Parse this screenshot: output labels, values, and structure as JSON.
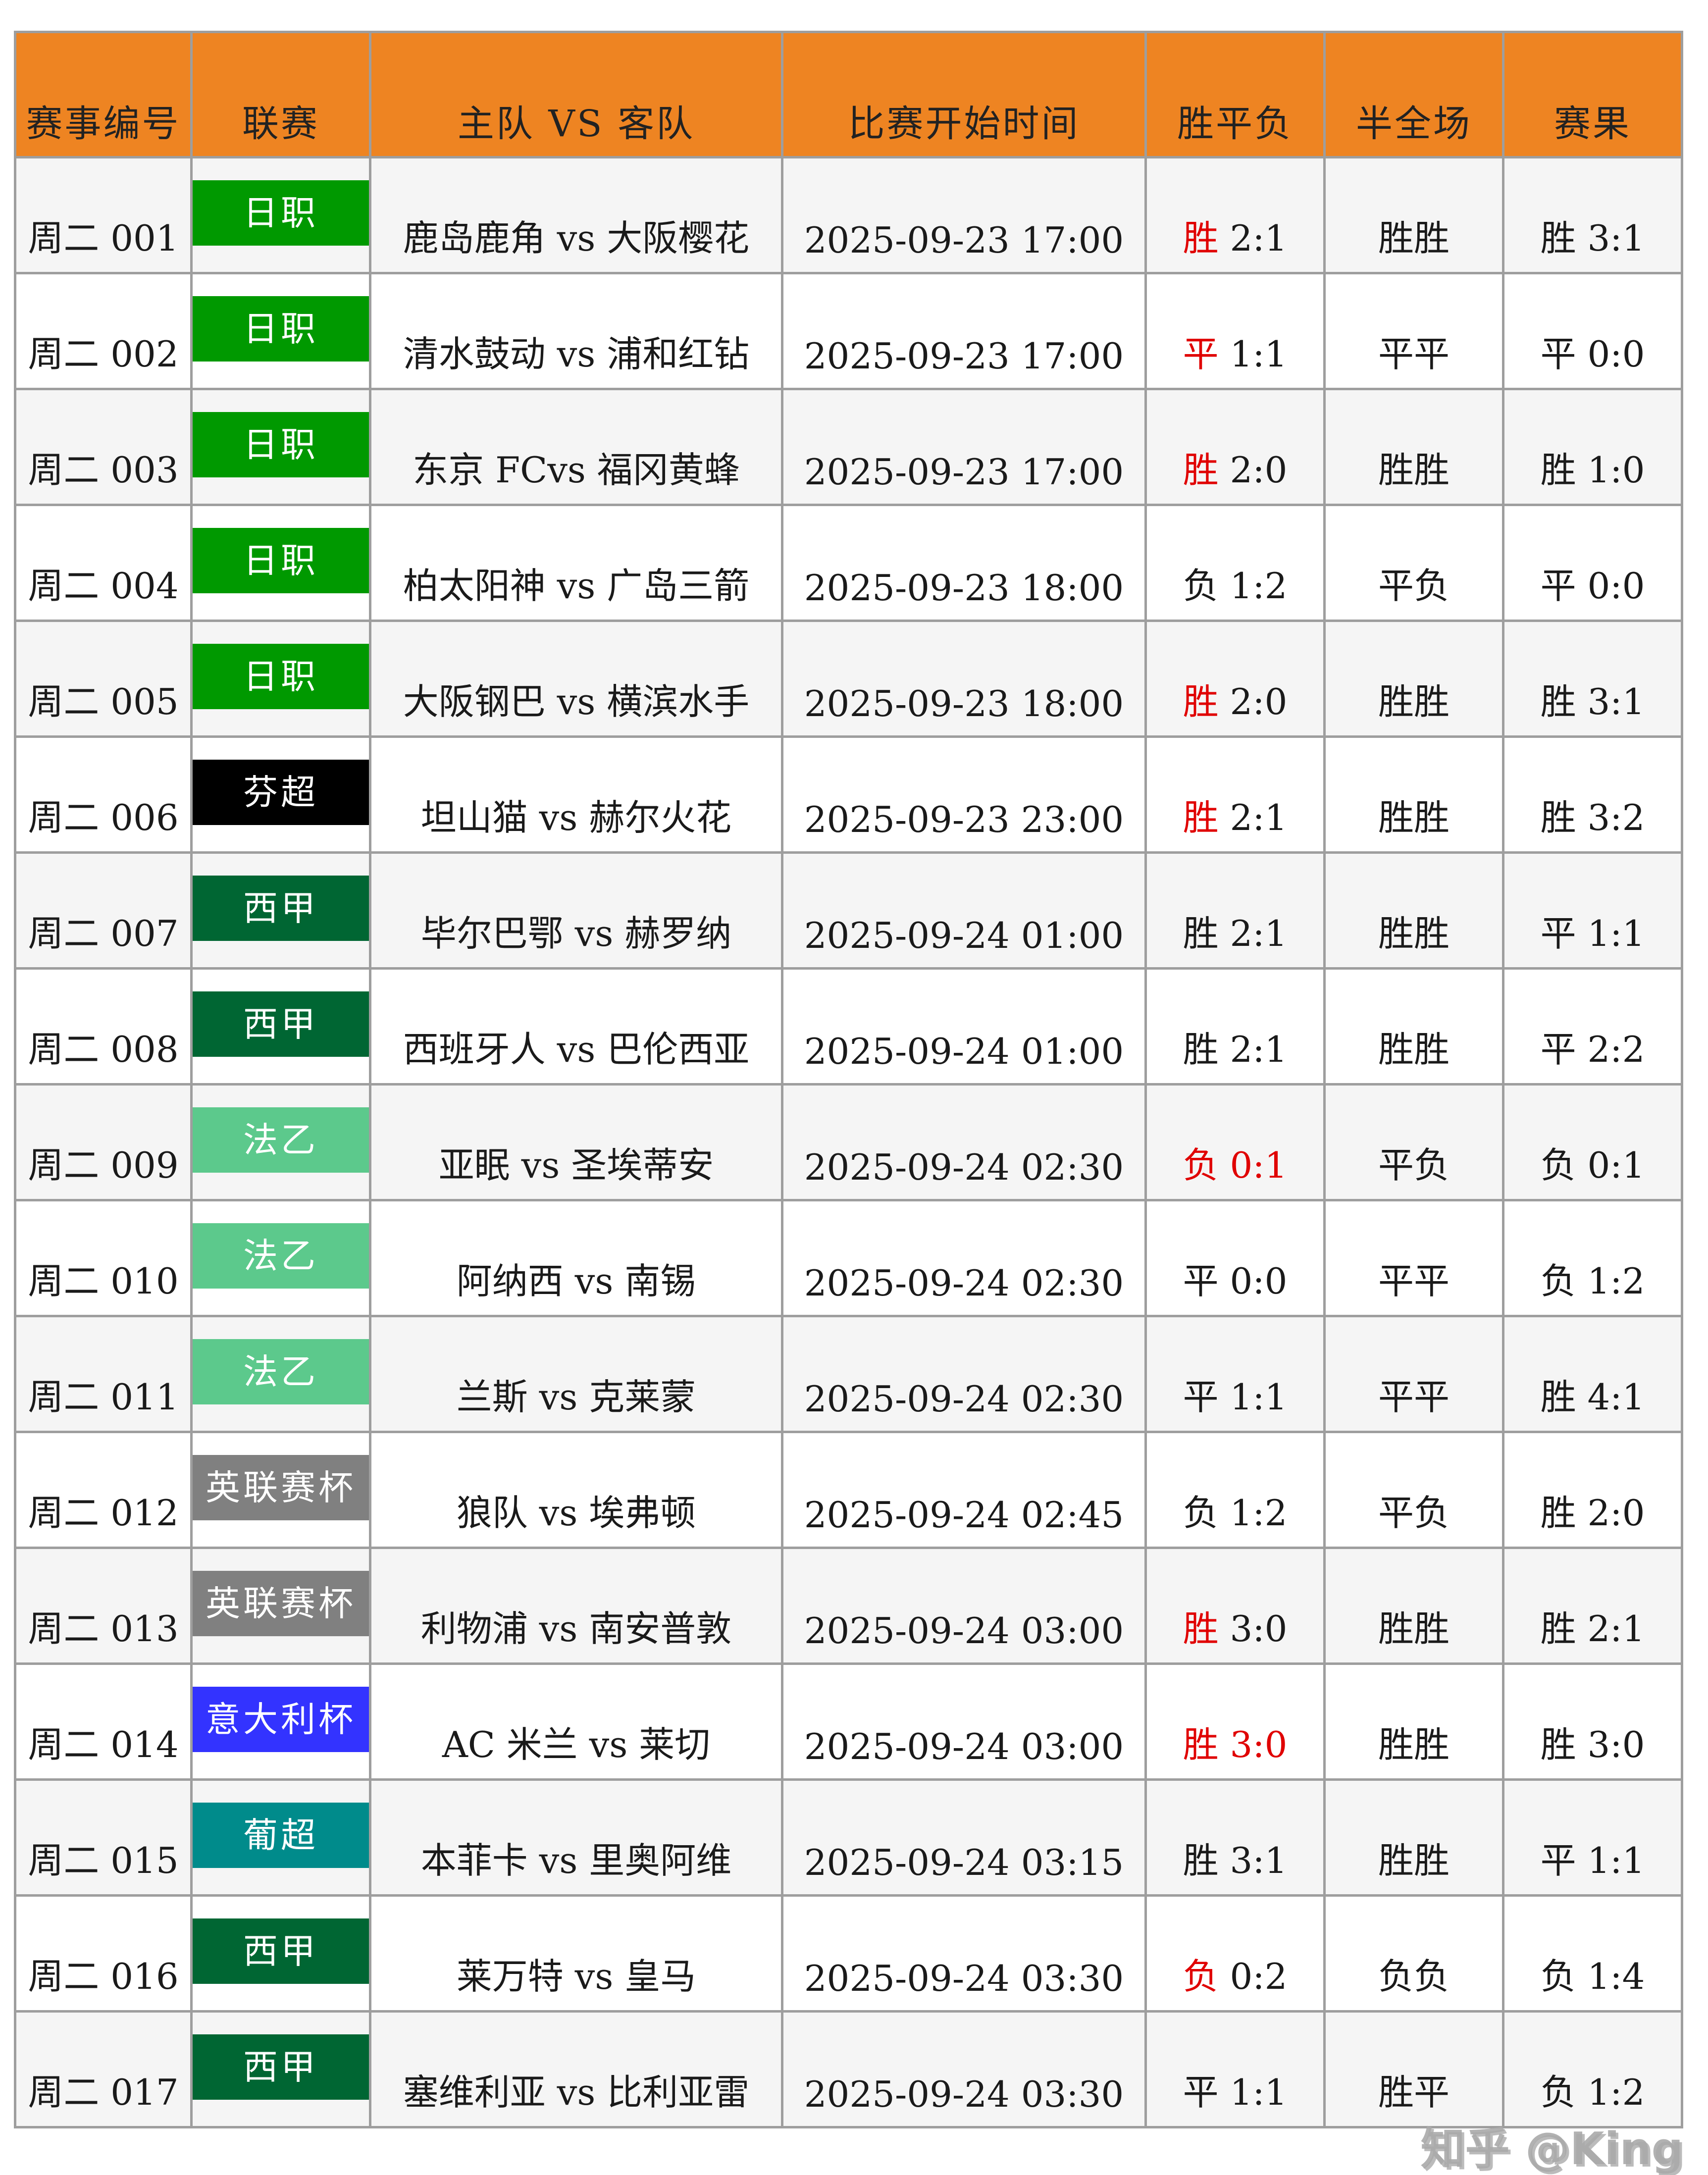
{
  "headers": [
    "赛事编号",
    "联赛",
    "主队 VS 客队",
    "比赛开始时间",
    "胜平负",
    "半全场",
    "赛果"
  ],
  "league_colors": {
    "日职": "#009900",
    "芬超": "#000000",
    "西甲": "#006633",
    "法乙": "#5cc98c",
    "英联赛杯": "#808080",
    "意大利杯": "#3333ff",
    "葡超": "#008b8b"
  },
  "accent_red": "#e00000",
  "header_color": "#ee8422",
  "rows": [
    {
      "id": "周二 001",
      "league": "日职",
      "match": "鹿岛鹿角 vs 大阪樱花",
      "time": "2025-09-23 17:00",
      "sfp_word": "胜",
      "sfp_score": "2:1",
      "sfp_word_red": true,
      "sfp_score_red": false,
      "half": "胜胜",
      "half_red": false,
      "result": "胜 3:1"
    },
    {
      "id": "周二 002",
      "league": "日职",
      "match": "清水鼓动 vs 浦和红钻",
      "time": "2025-09-23 17:00",
      "sfp_word": "平",
      "sfp_score": "1:1",
      "sfp_word_red": true,
      "sfp_score_red": false,
      "half": "平平",
      "half_red": true,
      "result": "平 0:0"
    },
    {
      "id": "周二 003",
      "league": "日职",
      "match": "东京 FCvs 福冈黄蜂",
      "time": "2025-09-23 17:00",
      "sfp_word": "胜",
      "sfp_score": "2:0",
      "sfp_word_red": true,
      "sfp_score_red": false,
      "half": "胜胜",
      "half_red": true,
      "result": "胜 1:0"
    },
    {
      "id": "周二 004",
      "league": "日职",
      "match": "柏太阳神 vs 广岛三箭",
      "time": "2025-09-23 18:00",
      "sfp_word": "负",
      "sfp_score": "1:2",
      "sfp_word_red": false,
      "sfp_score_red": false,
      "half": "平负",
      "half_red": false,
      "result": "平 0:0"
    },
    {
      "id": "周二 005",
      "league": "日职",
      "match": "大阪钢巴 vs 横滨水手",
      "time": "2025-09-23 18:00",
      "sfp_word": "胜",
      "sfp_score": "2:0",
      "sfp_word_red": true,
      "sfp_score_red": false,
      "half": "胜胜",
      "half_red": false,
      "result": "胜 3:1"
    },
    {
      "id": "周二 006",
      "league": "芬超",
      "match": "坦山猫 vs 赫尔火花",
      "time": "2025-09-23 23:00",
      "sfp_word": "胜",
      "sfp_score": "2:1",
      "sfp_word_red": true,
      "sfp_score_red": false,
      "half": "胜胜",
      "half_red": true,
      "result": "胜 3:2"
    },
    {
      "id": "周二 007",
      "league": "西甲",
      "match": "毕尔巴鄂 vs 赫罗纳",
      "time": "2025-09-24 01:00",
      "sfp_word": "胜",
      "sfp_score": "2:1",
      "sfp_word_red": false,
      "sfp_score_red": false,
      "half": "胜胜",
      "half_red": false,
      "result": "平 1:1"
    },
    {
      "id": "周二 008",
      "league": "西甲",
      "match": "西班牙人 vs 巴伦西亚",
      "time": "2025-09-24 01:00",
      "sfp_word": "胜",
      "sfp_score": "2:1",
      "sfp_word_red": false,
      "sfp_score_red": false,
      "half": "胜胜",
      "half_red": false,
      "result": "平 2:2"
    },
    {
      "id": "周二 009",
      "league": "法乙",
      "match": "亚眠 vs 圣埃蒂安",
      "time": "2025-09-24 02:30",
      "sfp_word": "负",
      "sfp_score": "0:1",
      "sfp_word_red": true,
      "sfp_score_red": true,
      "half": "平负",
      "half_red": true,
      "result": "负 0:1"
    },
    {
      "id": "周二 010",
      "league": "法乙",
      "match": "阿纳西 vs 南锡",
      "time": "2025-09-24 02:30",
      "sfp_word": "平",
      "sfp_score": "0:0",
      "sfp_word_red": false,
      "sfp_score_red": false,
      "half": "平平",
      "half_red": false,
      "result": "负 1:2"
    },
    {
      "id": "周二 011",
      "league": "法乙",
      "match": "兰斯 vs 克莱蒙",
      "time": "2025-09-24 02:30",
      "sfp_word": "平",
      "sfp_score": "1:1",
      "sfp_word_red": false,
      "sfp_score_red": false,
      "half": "平平",
      "half_red": false,
      "result": "胜 4:1"
    },
    {
      "id": "周二 012",
      "league": "英联赛杯",
      "match": "狼队 vs 埃弗顿",
      "time": "2025-09-24 02:45",
      "sfp_word": "负",
      "sfp_score": "1:2",
      "sfp_word_red": false,
      "sfp_score_red": false,
      "half": "平负",
      "half_red": false,
      "result": "胜 2:0"
    },
    {
      "id": "周二 013",
      "league": "英联赛杯",
      "match": "利物浦 vs 南安普敦",
      "time": "2025-09-24 03:00",
      "sfp_word": "胜",
      "sfp_score": "3:0",
      "sfp_word_red": true,
      "sfp_score_red": false,
      "half": "胜胜",
      "half_red": true,
      "result": "胜 2:1"
    },
    {
      "id": "周二 014",
      "league": "意大利杯",
      "match": "AC 米兰 vs 莱切",
      "time": "2025-09-24 03:00",
      "sfp_word": "胜",
      "sfp_score": "3:0",
      "sfp_word_red": true,
      "sfp_score_red": true,
      "half": "胜胜",
      "half_red": true,
      "result": "胜 3:0"
    },
    {
      "id": "周二 015",
      "league": "葡超",
      "match": "本菲卡 vs 里奥阿维",
      "time": "2025-09-24 03:15",
      "sfp_word": "胜",
      "sfp_score": "3:1",
      "sfp_word_red": false,
      "sfp_score_red": false,
      "half": "胜胜",
      "half_red": false,
      "result": "平 1:1"
    },
    {
      "id": "周二 016",
      "league": "西甲",
      "match": "莱万特 vs 皇马",
      "time": "2025-09-24 03:30",
      "sfp_word": "负",
      "sfp_score": "0:2",
      "sfp_word_red": true,
      "sfp_score_red": false,
      "half": "负负",
      "half_red": true,
      "result": "负 1:4"
    },
    {
      "id": "周二 017",
      "league": "西甲",
      "match": "塞维利亚 vs 比利亚雷",
      "time": "2025-09-24 03:30",
      "sfp_word": "平",
      "sfp_score": "1:1",
      "sfp_word_red": false,
      "sfp_score_red": false,
      "half": "胜平",
      "half_red": false,
      "result": "负 1:2"
    }
  ],
  "watermark": "知乎 @King"
}
